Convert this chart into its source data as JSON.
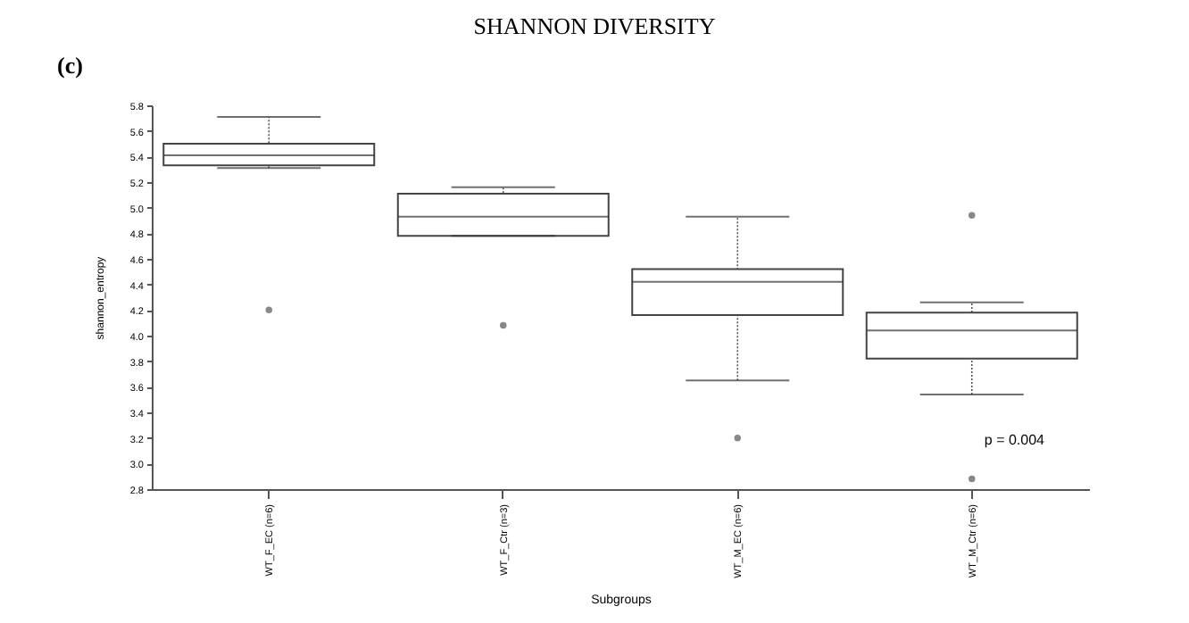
{
  "chart_data": {
    "type": "box",
    "title": "SHANNON DIVERSITY",
    "xlabel": "Subgroups",
    "ylabel": "shannon_entropy",
    "categories": [
      "WT_F_EC (n=6)",
      "WT_F_Ctr (n=3)",
      "WT_M_EC (n=6)",
      "WT_M_Ctr (n=6)"
    ],
    "boxes": [
      {
        "low": 5.31,
        "q1": 5.33,
        "median": 5.41,
        "q3": 5.5,
        "high": 5.71,
        "outliers": [
          4.2
        ]
      },
      {
        "low": 4.78,
        "q1": 4.78,
        "median": 4.93,
        "q3": 5.11,
        "high": 5.16,
        "outliers": [
          4.08
        ]
      },
      {
        "low": 3.65,
        "q1": 4.16,
        "median": 4.42,
        "q3": 4.52,
        "high": 4.93,
        "outliers": [
          3.2
        ]
      },
      {
        "low": 3.54,
        "q1": 3.82,
        "median": 4.04,
        "q3": 4.18,
        "high": 4.26,
        "outliers": [
          4.94,
          2.88
        ]
      }
    ],
    "ylim": [
      2.8,
      5.8
    ],
    "yticks": [
      2.8,
      {
        "value": 3,
        "label": "3.0"
      },
      3.2,
      3.4,
      3.6,
      3.8,
      {
        "value": 4,
        "label": "4.0"
      },
      4.2,
      4.4,
      4.6,
      4.8,
      {
        "value": 5,
        "label": "5.0"
      },
      5.2,
      5.4,
      5.6,
      5.8
    ],
    "grid": false,
    "annotations": [
      "(c)",
      "p = 0.004"
    ]
  }
}
